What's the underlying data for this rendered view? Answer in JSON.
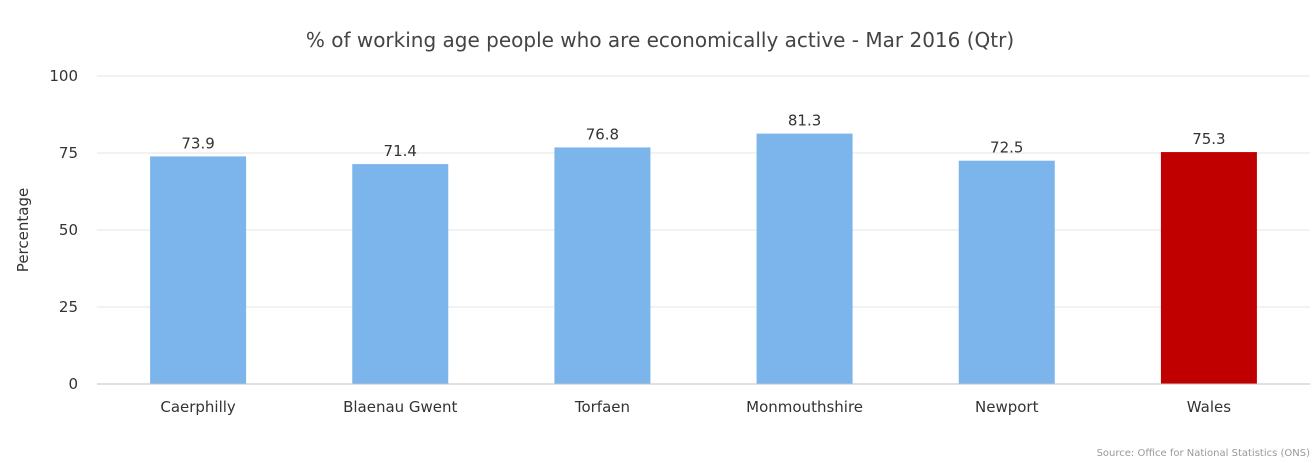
{
  "chart_data": {
    "type": "bar",
    "title": "% of working age people who are economically active - Mar 2016 (Qtr)",
    "xlabel": "",
    "ylabel": "Percentage",
    "ylim": [
      0,
      100
    ],
    "yticks": [
      0,
      25,
      50,
      75,
      100
    ],
    "categories": [
      "Caerphilly",
      "Blaenau Gwent",
      "Torfaen",
      "Monmouthshire",
      "Newport",
      "Wales"
    ],
    "values": [
      73.9,
      71.4,
      76.8,
      81.3,
      72.5,
      75.3
    ],
    "data_labels": [
      "73.9",
      "71.4",
      "76.8",
      "81.3",
      "72.5",
      "75.3"
    ],
    "colors": [
      "#7cb5ec",
      "#7cb5ec",
      "#7cb5ec",
      "#7cb5ec",
      "#7cb5ec",
      "#c00000"
    ],
    "grid": true,
    "legend": "none",
    "source": "Source: Office for National Statistics (ONS)"
  }
}
